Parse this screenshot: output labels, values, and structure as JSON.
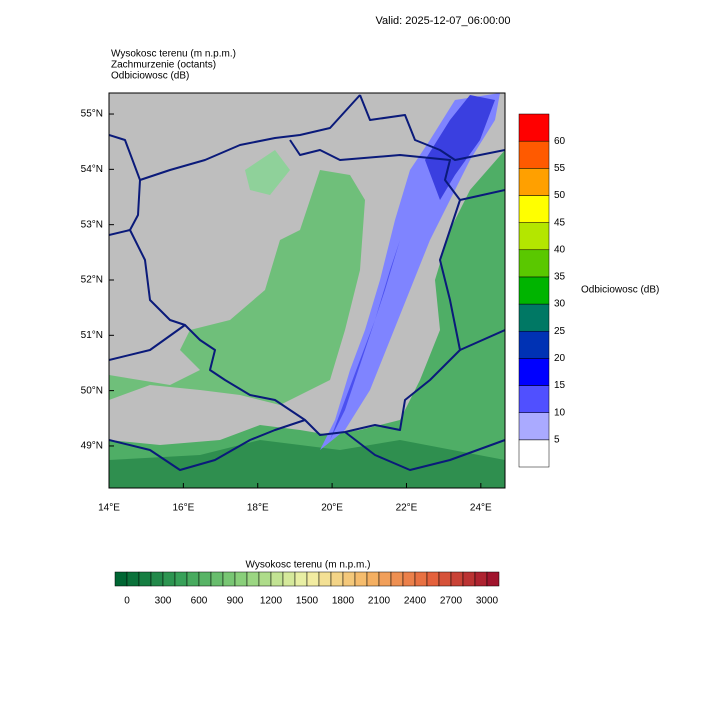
{
  "header": {
    "valid": "Valid: 2025-12-07_06:00:00"
  },
  "fields": [
    "Wysokosc terenu   (m n.p.m.)",
    "Zachmurzenie   (octants)",
    "Odbiciowosc   (dB)"
  ],
  "map": {
    "lon_range": [
      14,
      24.65
    ],
    "lat_range": [
      48.24,
      55.38
    ],
    "lat_ticks": [
      {
        "value": 49,
        "label": "49°N"
      },
      {
        "value": 50,
        "label": "50°N"
      },
      {
        "value": 51,
        "label": "51°N"
      },
      {
        "value": 52,
        "label": "52°N"
      },
      {
        "value": 53,
        "label": "53°N"
      },
      {
        "value": 54,
        "label": "54°N"
      },
      {
        "value": 55,
        "label": "55°N"
      }
    ],
    "lon_ticks": [
      {
        "value": 14,
        "label": "14°E"
      },
      {
        "value": 16,
        "label": "16°E"
      },
      {
        "value": 18,
        "label": "18°E"
      },
      {
        "value": 20,
        "label": "20°E"
      },
      {
        "value": 22,
        "label": "22°E"
      },
      {
        "value": 24,
        "label": "24°E"
      }
    ]
  },
  "reflectivity_bar": {
    "title": "Odbiciowosc  (dB)",
    "levels": [
      5,
      10,
      15,
      20,
      25,
      30,
      35,
      40,
      45,
      50,
      55,
      60
    ],
    "colors": [
      "#ffffff",
      "#aaaaff",
      "#5050ff",
      "#0000ff",
      "#0032b4",
      "#007864",
      "#00b400",
      "#5ac800",
      "#b4e600",
      "#ffff00",
      "#ffa000",
      "#ff5a00",
      "#ff0000"
    ]
  },
  "terrain_bar": {
    "title": "Wysokosc terenu  (m n.p.m.)",
    "labels": [
      0,
      300,
      600,
      900,
      1200,
      1500,
      1800,
      2100,
      2400,
      2700,
      3000
    ],
    "color_stops": [
      "#006633",
      "#3aa35a",
      "#8ed27c",
      "#f2f2a8",
      "#f5b464",
      "#e6643c",
      "#a0142d"
    ]
  }
}
